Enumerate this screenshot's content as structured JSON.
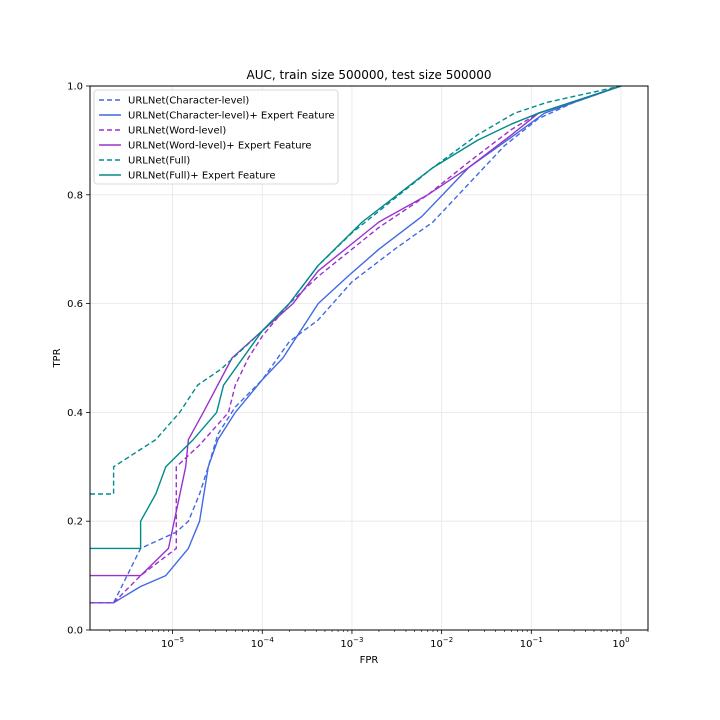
{
  "chart_data": {
    "type": "line",
    "title": "AUC, train size 500000, test size 500000",
    "xlabel": "FPR",
    "ylabel": "TPR",
    "xscale": "log",
    "xlim": [
      1.2e-06,
      2.0
    ],
    "ylim": [
      0.0,
      1.0
    ],
    "grid": true,
    "legend_position": "top-left",
    "x_ticks": [
      {
        "value": 1e-05,
        "base": "10",
        "exp": "−5"
      },
      {
        "value": 0.0001,
        "base": "10",
        "exp": "−4"
      },
      {
        "value": 0.001,
        "base": "10",
        "exp": "−3"
      },
      {
        "value": 0.01,
        "base": "10",
        "exp": "−2"
      },
      {
        "value": 0.1,
        "base": "10",
        "exp": "−1"
      },
      {
        "value": 1,
        "base": "10",
        "exp": "0"
      }
    ],
    "y_ticks": [
      {
        "value": 0.0,
        "label": "0.0"
      },
      {
        "value": 0.2,
        "label": "0.2"
      },
      {
        "value": 0.4,
        "label": "0.4"
      },
      {
        "value": 0.6,
        "label": "0.6"
      },
      {
        "value": 0.8,
        "label": "0.8"
      },
      {
        "value": 1.0,
        "label": "1.0"
      }
    ],
    "series": [
      {
        "name": "URLNet(Character-level)",
        "color": "#4169e1",
        "dashed": true,
        "points": [
          [
            1.2e-06,
            0.05
          ],
          [
            2.2e-06,
            0.05
          ],
          [
            4.4e-06,
            0.15
          ],
          [
            1.1e-05,
            0.18
          ],
          [
            1.5e-05,
            0.2
          ],
          [
            2e-05,
            0.25
          ],
          [
            2.5e-05,
            0.3
          ],
          [
            3.2e-05,
            0.36
          ],
          [
            5e-05,
            0.41
          ],
          [
            0.0001,
            0.46
          ],
          [
            0.0002,
            0.53
          ],
          [
            0.00042,
            0.57
          ],
          [
            0.001,
            0.64
          ],
          [
            0.003,
            0.7
          ],
          [
            0.008,
            0.75
          ],
          [
            0.02,
            0.82
          ],
          [
            0.05,
            0.89
          ],
          [
            0.12,
            0.94
          ],
          [
            0.3,
            0.97
          ],
          [
            1,
            1.0
          ]
        ]
      },
      {
        "name": "URLNet(Character-level)+ Expert Feature",
        "color": "#4169e1",
        "dashed": false,
        "points": [
          [
            1.2e-06,
            0.05
          ],
          [
            2.2e-06,
            0.05
          ],
          [
            4.4e-06,
            0.08
          ],
          [
            8.4e-06,
            0.1
          ],
          [
            1.5e-05,
            0.15
          ],
          [
            2e-05,
            0.2
          ],
          [
            2.5e-05,
            0.3
          ],
          [
            3.2e-05,
            0.35
          ],
          [
            5e-05,
            0.4
          ],
          [
            0.0001,
            0.46
          ],
          [
            0.00017,
            0.5
          ],
          [
            0.00042,
            0.6
          ],
          [
            0.0009,
            0.65
          ],
          [
            0.002,
            0.7
          ],
          [
            0.006,
            0.76
          ],
          [
            0.02,
            0.85
          ],
          [
            0.065,
            0.91
          ],
          [
            0.14,
            0.95
          ],
          [
            0.3,
            0.97
          ],
          [
            1,
            1.0
          ]
        ]
      },
      {
        "name": "URLNet(Word-level)",
        "color": "#9932cc",
        "dashed": true,
        "points": [
          [
            1.2e-06,
            0.05
          ],
          [
            2.2e-06,
            0.05
          ],
          [
            4.4e-06,
            0.1
          ],
          [
            1.1e-05,
            0.15
          ],
          [
            1.1e-05,
            0.3
          ],
          [
            2e-05,
            0.34
          ],
          [
            4.2e-05,
            0.4
          ],
          [
            5e-05,
            0.45
          ],
          [
            7e-05,
            0.5
          ],
          [
            0.0001,
            0.54
          ],
          [
            0.0002,
            0.6
          ],
          [
            0.00042,
            0.65
          ],
          [
            0.001,
            0.7
          ],
          [
            0.002,
            0.74
          ],
          [
            0.007,
            0.8
          ],
          [
            0.02,
            0.86
          ],
          [
            0.06,
            0.92
          ],
          [
            0.12,
            0.95
          ],
          [
            1,
            1.0
          ]
        ]
      },
      {
        "name": "URLNet(Word-level)+ Expert Feature",
        "color": "#9932cc",
        "dashed": false,
        "points": [
          [
            1.2e-06,
            0.1
          ],
          [
            4.4e-06,
            0.1
          ],
          [
            9e-06,
            0.15
          ],
          [
            1.4e-05,
            0.3
          ],
          [
            1.5e-05,
            0.35
          ],
          [
            2.2e-05,
            0.4
          ],
          [
            4.6e-05,
            0.5
          ],
          [
            0.0001,
            0.55
          ],
          [
            0.00022,
            0.6
          ],
          [
            0.00042,
            0.66
          ],
          [
            0.001,
            0.71
          ],
          [
            0.002,
            0.75
          ],
          [
            0.007,
            0.8
          ],
          [
            0.02,
            0.85
          ],
          [
            0.06,
            0.91
          ],
          [
            0.12,
            0.95
          ],
          [
            1,
            1.0
          ]
        ]
      },
      {
        "name": "URLNet(Full)",
        "color": "#008b8b",
        "dashed": true,
        "points": [
          [
            1.2e-06,
            0.25
          ],
          [
            2.2e-06,
            0.25
          ],
          [
            2.2e-06,
            0.3
          ],
          [
            6.5e-06,
            0.35
          ],
          [
            1.2e-05,
            0.4
          ],
          [
            1.9e-05,
            0.45
          ],
          [
            3.5e-05,
            0.48
          ],
          [
            0.0001,
            0.55
          ],
          [
            0.0002,
            0.6
          ],
          [
            0.00042,
            0.67
          ],
          [
            0.001,
            0.73
          ],
          [
            0.002,
            0.77
          ],
          [
            0.008,
            0.85
          ],
          [
            0.025,
            0.91
          ],
          [
            0.065,
            0.95
          ],
          [
            0.15,
            0.97
          ],
          [
            1,
            1.0
          ]
        ]
      },
      {
        "name": "URLNet(Full)+ Expert Feature",
        "color": "#008b8b",
        "dashed": false,
        "points": [
          [
            1.2e-06,
            0.15
          ],
          [
            4.4e-06,
            0.15
          ],
          [
            4.4e-06,
            0.2
          ],
          [
            6.5e-06,
            0.25
          ],
          [
            8.4e-06,
            0.3
          ],
          [
            1.7e-05,
            0.35
          ],
          [
            3.1e-05,
            0.4
          ],
          [
            3.7e-05,
            0.45
          ],
          [
            0.0001,
            0.55
          ],
          [
            0.0002,
            0.6
          ],
          [
            0.00042,
            0.67
          ],
          [
            0.0013,
            0.75
          ],
          [
            0.008,
            0.85
          ],
          [
            0.025,
            0.9
          ],
          [
            0.06,
            0.93
          ],
          [
            0.12,
            0.95
          ],
          [
            1,
            1.0
          ]
        ]
      }
    ]
  }
}
